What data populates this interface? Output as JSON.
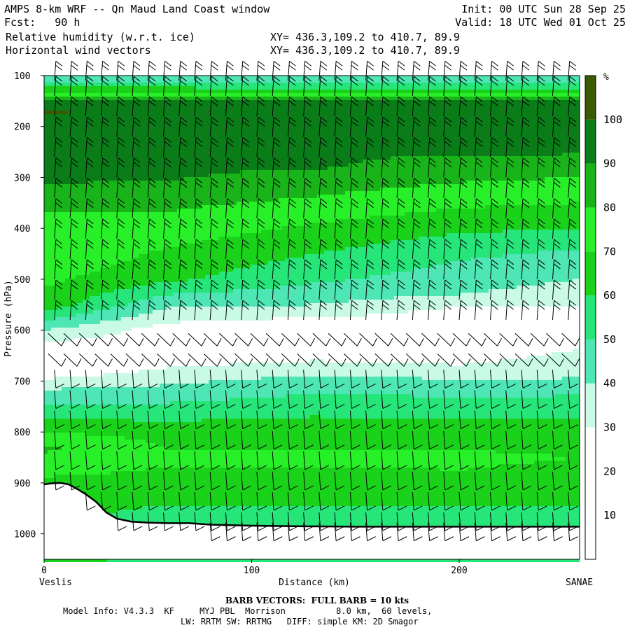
{
  "header": {
    "title": "AMPS 8-km WRF -- Qn Maud Land Coast window",
    "fcst": "Fcst:   90 h",
    "field1": "Relative humidity (w.r.t. ice)",
    "field2": "Horizontal wind vectors",
    "xy1": "XY= 436.3,109.2 to 410.7, 89.9",
    "xy2": "XY= 436.3,109.2 to 410.7, 89.9",
    "init": "Init: 00 UTC Sun 28 Sep 25",
    "valid": "Valid: 18 UTC Wed 01 Oct 25"
  },
  "footer": {
    "barb": "BARB VECTORS:  FULL BARB = 10 kts",
    "model1": "Model Info: V4.3.3  KF     MYJ PBL  Morrison          8.0 km,  60 levels,",
    "model2": "LW: RRTM SW: RRTMG   DIFF: simple KM: 2D Smagor"
  },
  "chart_data": {
    "type": "contour-cross-section",
    "title": "Relative humidity (w.r.t. ice) and horizontal wind vectors",
    "xlabel": "Distance (km)",
    "ylabel": "Pressure (hPa)",
    "xlim": [
      0,
      258
    ],
    "ylim": [
      1050,
      100
    ],
    "x_ticks": [
      0,
      100,
      200
    ],
    "y_ticks": [
      100,
      200,
      300,
      400,
      500,
      600,
      700,
      800,
      900,
      1000
    ],
    "left_endpoint": "Veslis",
    "right_endpoint": "SANAE",
    "colorbar_unit": "%",
    "colorbar_ticks": [
      10,
      20,
      30,
      40,
      50,
      60,
      70,
      80,
      90,
      100
    ],
    "bins": [
      {
        "lo": 0,
        "hi": 30,
        "color": "#ffffff"
      },
      {
        "lo": 30,
        "hi": 40,
        "color": "#c8fae6"
      },
      {
        "lo": 40,
        "hi": 50,
        "color": "#4de6b4"
      },
      {
        "lo": 50,
        "hi": 60,
        "color": "#26e67a"
      },
      {
        "lo": 60,
        "hi": 70,
        "color": "#1ad21a"
      },
      {
        "lo": 70,
        "hi": 80,
        "color": "#28f028"
      },
      {
        "lo": 80,
        "hi": 90,
        "color": "#19b419"
      },
      {
        "lo": 90,
        "hi": 100,
        "color": "#0a7d19"
      },
      {
        "lo": 100,
        "hi": 110,
        "color": "#3c5a00"
      }
    ],
    "rh_profiles": [
      {
        "x": 0,
        "p": [
          100,
          130,
          150,
          170,
          200,
          300,
          400,
          450,
          500,
          550,
          600,
          640,
          680,
          720,
          780,
          830,
          880,
          920
        ],
        "rh": [
          42,
          65,
          95,
          101,
          95,
          92,
          75,
          79,
          72,
          66,
          40,
          22,
          22,
          42,
          62,
          82,
          72,
          62
        ]
      },
      {
        "x": 60,
        "p": [
          100,
          130,
          150,
          170,
          200,
          300,
          350,
          400,
          450,
          500,
          550,
          600,
          660,
          700,
          750,
          800,
          850,
          900,
          960
        ],
        "rh": [
          42,
          65,
          95,
          98,
          93,
          91,
          82,
          76,
          68,
          62,
          42,
          25,
          26,
          38,
          52,
          66,
          72,
          66,
          58
        ]
      },
      {
        "x": 130,
        "p": [
          100,
          130,
          150,
          200,
          280,
          300,
          350,
          400,
          450,
          500,
          550,
          580,
          600,
          660,
          700,
          750,
          800,
          850,
          900,
          960
        ],
        "rh": [
          42,
          62,
          92,
          92,
          91,
          86,
          78,
          68,
          60,
          52,
          40,
          28,
          24,
          30,
          44,
          56,
          66,
          72,
          66,
          58
        ]
      },
      {
        "x": 200,
        "p": [
          100,
          130,
          150,
          200,
          250,
          300,
          350,
          400,
          450,
          500,
          530,
          560,
          620,
          680,
          700,
          750,
          800,
          850,
          900,
          960
        ],
        "rh": [
          42,
          62,
          92,
          92,
          91,
          82,
          72,
          62,
          52,
          45,
          40,
          28,
          22,
          32,
          42,
          55,
          65,
          72,
          68,
          58
        ]
      },
      {
        "x": 258,
        "p": [
          100,
          130,
          150,
          200,
          250,
          300,
          350,
          400,
          450,
          500,
          530,
          560,
          620,
          680,
          700,
          750,
          800,
          850,
          900,
          960
        ],
        "rh": [
          42,
          62,
          92,
          92,
          91,
          80,
          70,
          60,
          48,
          40,
          35,
          28,
          28,
          35,
          42,
          56,
          65,
          70,
          66,
          58
        ]
      }
    ],
    "terrain": {
      "x": [
        0,
        3,
        8,
        12,
        16,
        20,
        25,
        30,
        35,
        42,
        50,
        60,
        70,
        80,
        90,
        100,
        120,
        150,
        180,
        210,
        240,
        258
      ],
      "p": [
        903,
        901,
        900,
        903,
        912,
        922,
        937,
        958,
        970,
        976,
        978,
        979,
        979,
        982,
        983,
        984,
        985,
        986,
        986,
        986,
        986,
        986
      ]
    },
    "wind_barbs": {
      "x_step_km": 7.5,
      "levels_hPa": [
        110,
        140,
        180,
        220,
        260,
        300,
        340,
        380,
        420,
        460,
        500,
        540,
        580,
        620,
        660,
        700,
        740,
        780,
        820,
        860,
        900,
        940,
        980,
        1000
      ],
      "upper_direction": "northerly",
      "upper_full_barbs": 2,
      "lower_direction": "easterly",
      "lower_full_barbs": 1
    }
  }
}
